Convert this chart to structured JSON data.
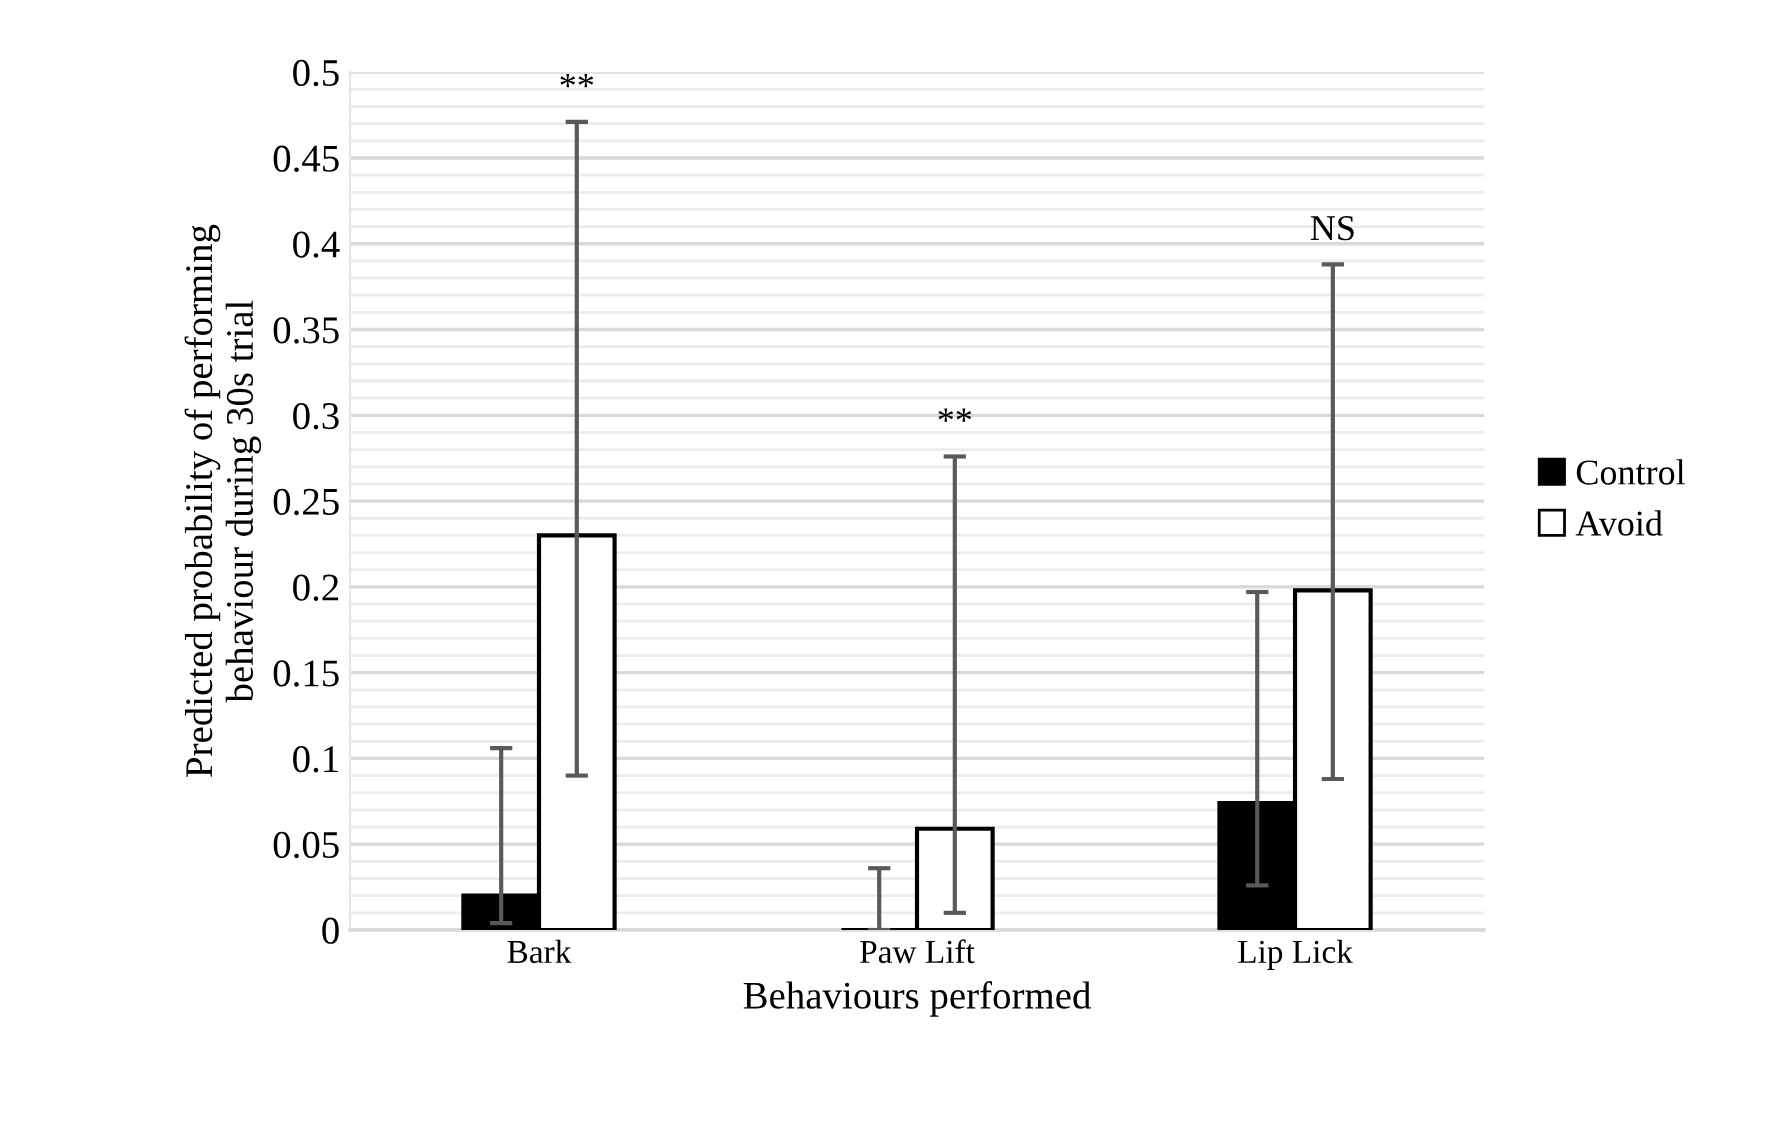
{
  "chart_data": {
    "type": "bar",
    "xlabel": "Behaviours performed",
    "ylabel": "Predicted probability of performing\nbehaviour during 30s trial",
    "categories": [
      "Bark",
      "Paw Lift",
      "Lip Lick"
    ],
    "series": [
      {
        "name": "Control",
        "color": "#000000",
        "values": [
          0.02,
          0,
          0.074
        ],
        "errors": [
          [
            0.004,
            0.106
          ],
          [
            0,
            0.036
          ],
          [
            0.026,
            0.197
          ]
        ]
      },
      {
        "name": "Avoid",
        "color": "#ffffff",
        "values": [
          0.23,
          0.059,
          0.198
        ],
        "errors": [
          [
            0.09,
            0.471
          ],
          [
            0.01,
            0.276
          ],
          [
            0.088,
            0.388
          ]
        ]
      }
    ],
    "ylim": [
      0,
      0.5
    ],
    "yticks": [
      0,
      0.05,
      0.1,
      0.15,
      0.2,
      0.25,
      0.3,
      0.35,
      0.4,
      0.45,
      0.5
    ],
    "grid": "y",
    "legend": "right",
    "annotations": [
      "**",
      "**",
      "NS"
    ]
  }
}
